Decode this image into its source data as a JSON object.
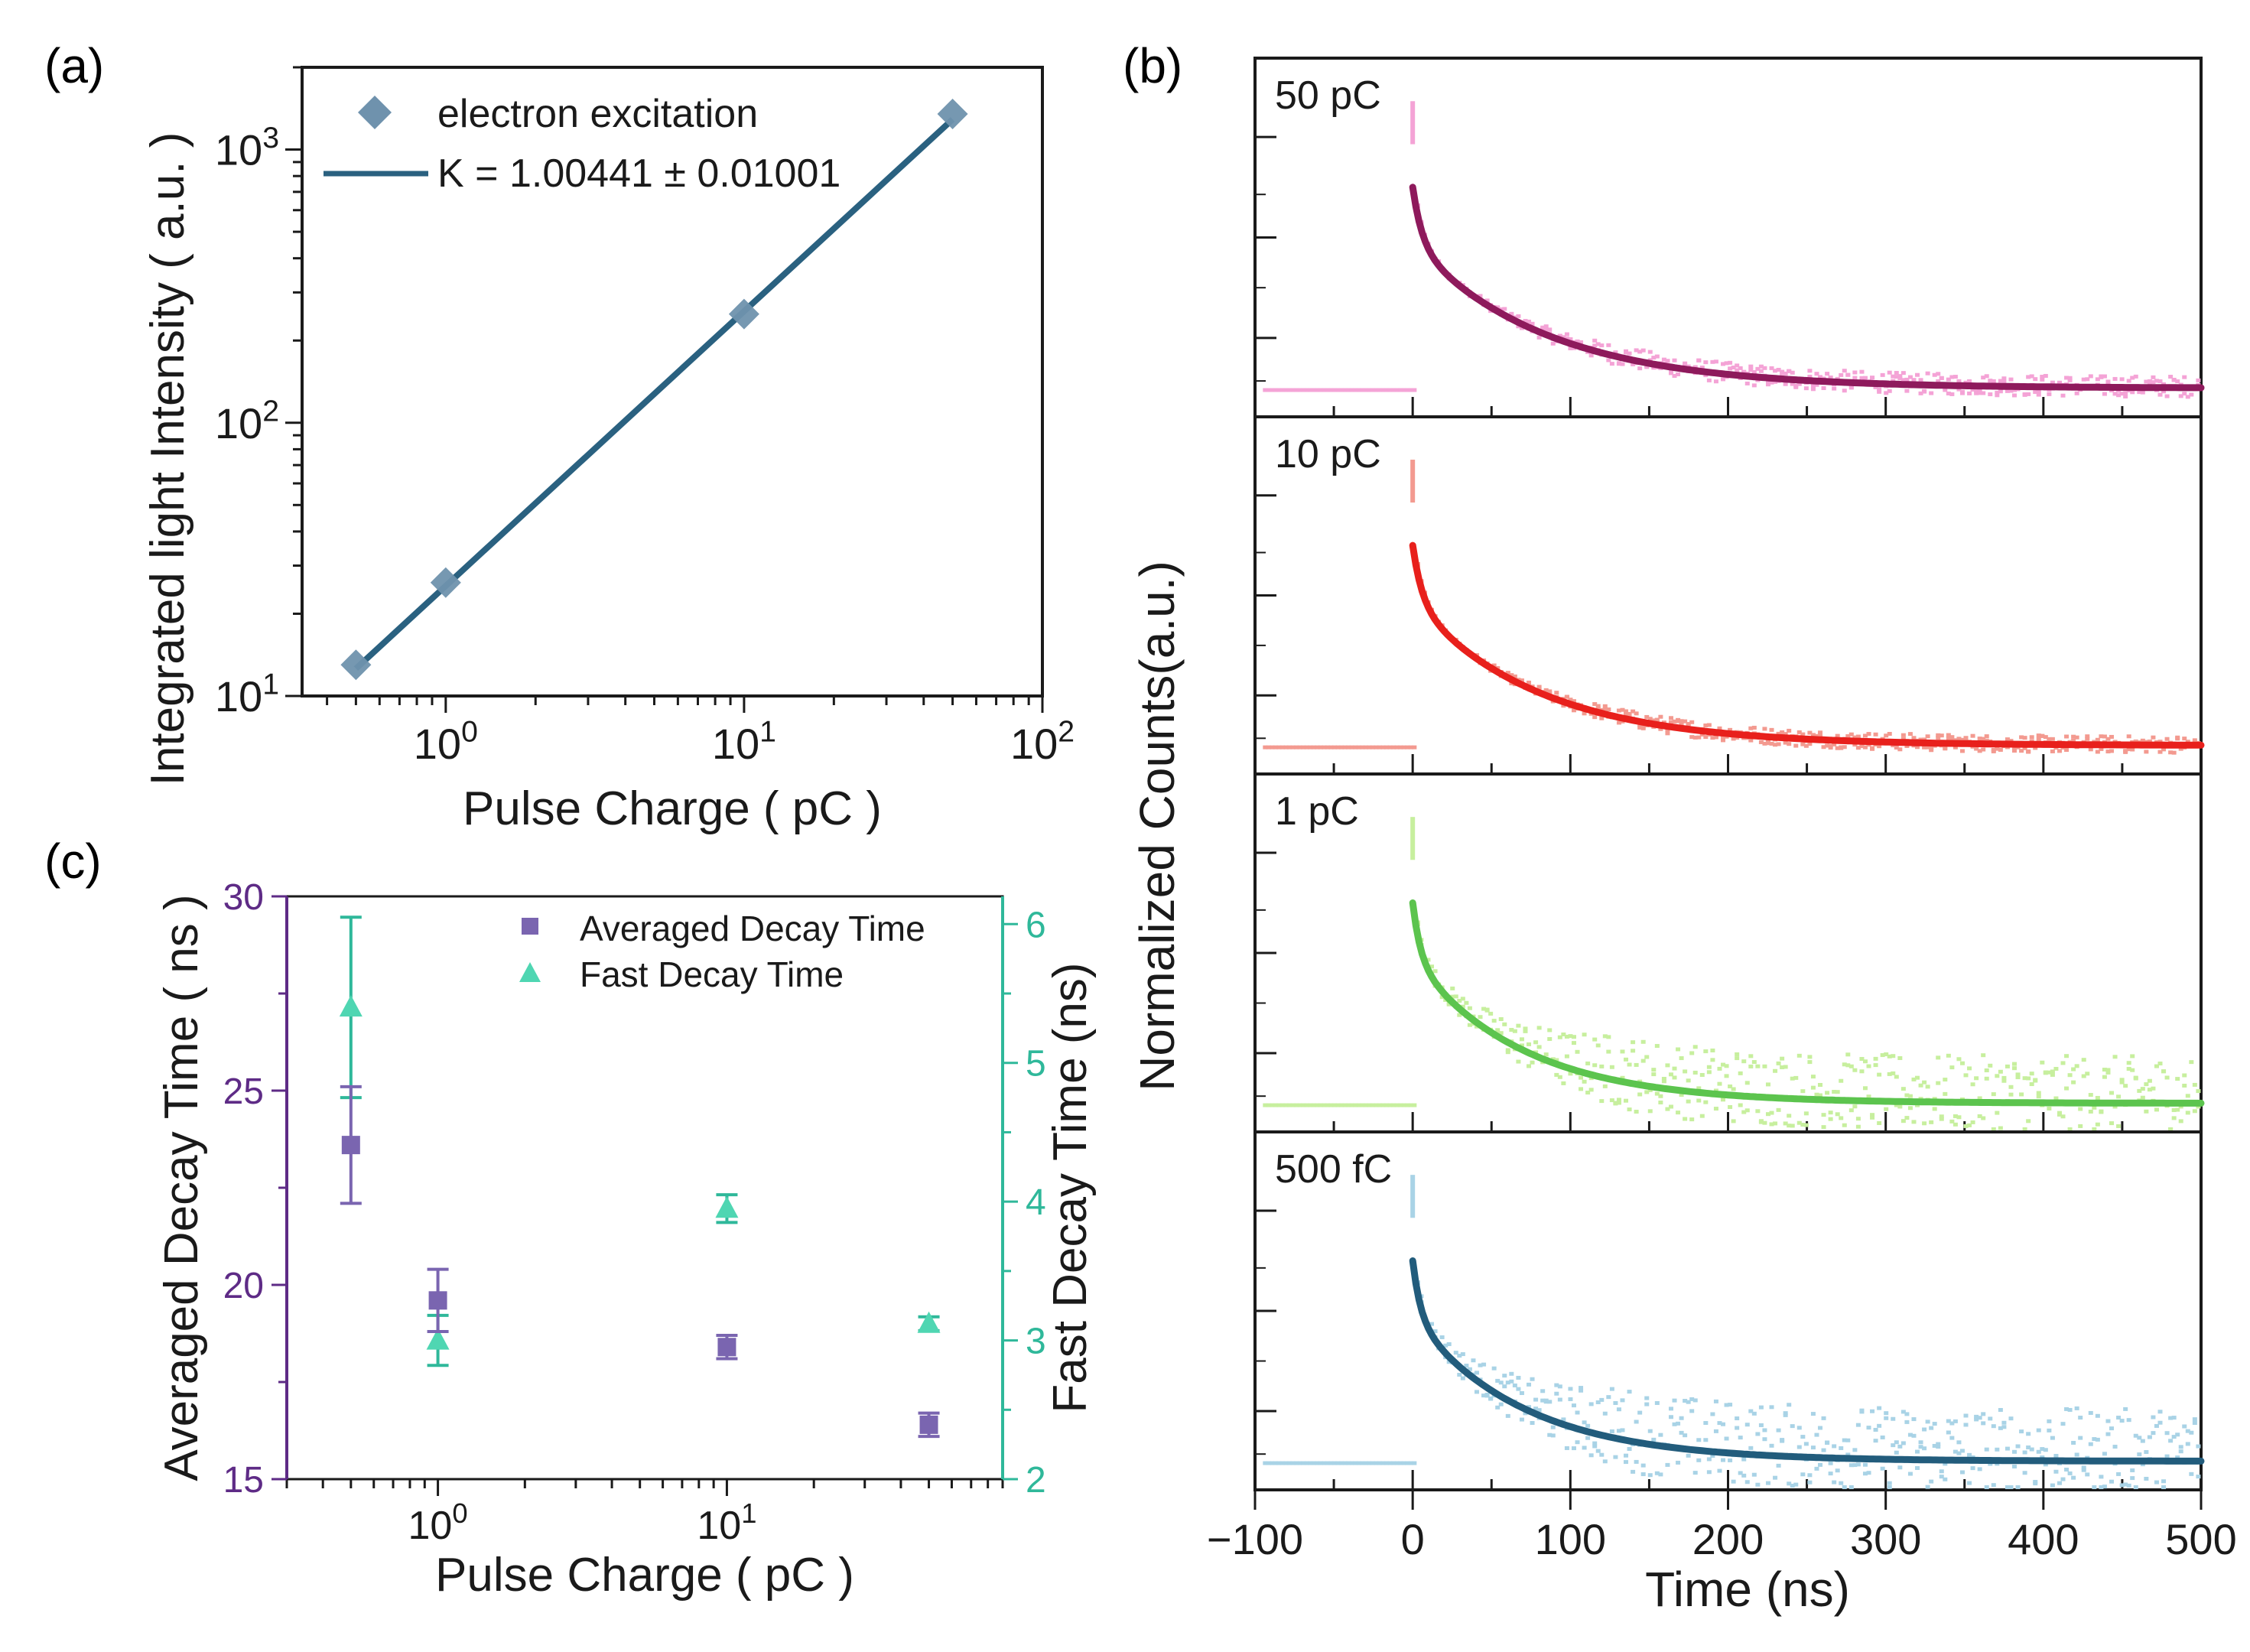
{
  "figure": {
    "panel_labels": [
      "(a)",
      "(b)",
      "(c)"
    ]
  },
  "colors": {
    "blue_line": "#2a6180",
    "blue_marker": "#6f92ad",
    "purple": "#5e2b86",
    "purple_marker": "#7a65b0",
    "teal": "#2fb89a",
    "teal_marker": "#4fd6b2",
    "axis": "#1a1a1a"
  },
  "chart_data": [
    {
      "panel": "(a)",
      "type": "scatter",
      "xscale": "log",
      "yscale": "log",
      "xlabel": "Pulse Charge ( pC )",
      "ylabel": "Integrated light Intensity ( a.u. )",
      "xlim": [
        0.33,
        100
      ],
      "ylim": [
        10,
        2000
      ],
      "xticks": [
        {
          "v": 1,
          "base": "10",
          "exp": "0"
        },
        {
          "v": 10,
          "base": "10",
          "exp": "1"
        },
        {
          "v": 100,
          "base": "10",
          "exp": "2"
        }
      ],
      "yticks": [
        {
          "v": 10,
          "base": "10",
          "exp": "1"
        },
        {
          "v": 100,
          "base": "10",
          "exp": "2"
        },
        {
          "v": 1000,
          "base": "10",
          "exp": "3"
        }
      ],
      "series": [
        {
          "name": "electron excitation",
          "kind": "marker",
          "x": [
            0.5,
            1,
            10,
            50
          ],
          "y": [
            13,
            26,
            250,
            1350
          ]
        },
        {
          "name": "K = 1.00441 ± 0.01001",
          "kind": "line",
          "x": [
            0.5,
            50
          ],
          "y": [
            12.6,
            1290
          ]
        }
      ],
      "legend": {
        "position": "top-left",
        "entries": [
          "electron excitation",
          "K = 1.00441 ± 0.01001"
        ]
      }
    },
    {
      "panel": "(b)",
      "type": "line",
      "xlabel": "Time (ns)",
      "ylabel": "Normalized Counts(a.u.)",
      "xlim": [
        -100,
        500
      ],
      "xticks": [
        -100,
        0,
        100,
        200,
        300,
        400,
        500
      ],
      "xtick_labels": [
        "−100",
        "0",
        "100",
        "200",
        "300",
        "400",
        "500"
      ],
      "subplots": [
        {
          "label": "50 pC",
          "fit_color": "#8e1a5c",
          "data_color": "#f4a3d6",
          "peak_time": 0,
          "fast_tau": 6,
          "slow_tau": 85,
          "baseline": 0.03,
          "noise": 0.25
        },
        {
          "label": "10 pC",
          "fit_color": "#e8201c",
          "data_color": "#f39a90",
          "peak_time": 0,
          "fast_tau": 6,
          "slow_tau": 80,
          "baseline": 0.02,
          "noise": 0.2
        },
        {
          "label": "1 pC",
          "fit_color": "#5cc44e",
          "data_color": "#c7ef9e",
          "peak_time": 0,
          "fast_tau": 5,
          "slow_tau": 70,
          "baseline": 0.03,
          "noise": 0.9
        },
        {
          "label": "500 fC",
          "fit_color": "#225c7c",
          "data_color": "#a9d3e6",
          "peak_time": 0,
          "fast_tau": 5,
          "slow_tau": 70,
          "baseline": 0.03,
          "noise": 1.0
        }
      ]
    },
    {
      "panel": "(c)",
      "type": "scatter",
      "xscale": "log",
      "xlabel": "Pulse Charge ( pC )",
      "ylabel_left": "Averaged Decay Time ( ns )",
      "ylabel_right": "Fast Decay Time (ns)",
      "xlim": [
        0.3,
        90
      ],
      "ylim_left": [
        15,
        30
      ],
      "ylim_right": [
        2,
        6.2
      ],
      "xticks": [
        {
          "v": 1,
          "base": "10",
          "exp": "0"
        },
        {
          "v": 10,
          "base": "10",
          "exp": "1"
        }
      ],
      "yticks_left": [
        15,
        20,
        25,
        30
      ],
      "yticks_right": [
        2,
        3,
        4,
        5,
        6
      ],
      "series": [
        {
          "name": "Averaged Decay Time",
          "axis": "left",
          "marker": "square",
          "x": [
            0.5,
            1,
            10,
            50
          ],
          "y": [
            23.6,
            19.6,
            18.4,
            16.4
          ],
          "err": [
            1.5,
            0.8,
            0.3,
            0.3
          ]
        },
        {
          "name": "Fast Decay Time",
          "axis": "right",
          "marker": "triangle",
          "x": [
            0.5,
            1,
            10,
            50
          ],
          "y": [
            5.4,
            3.0,
            3.95,
            3.12
          ],
          "err": [
            0.65,
            0.18,
            0.1,
            0.05
          ]
        }
      ],
      "legend": {
        "position": "top-right",
        "entries": [
          "Averaged Decay Time",
          "Fast Decay Time"
        ]
      }
    }
  ]
}
